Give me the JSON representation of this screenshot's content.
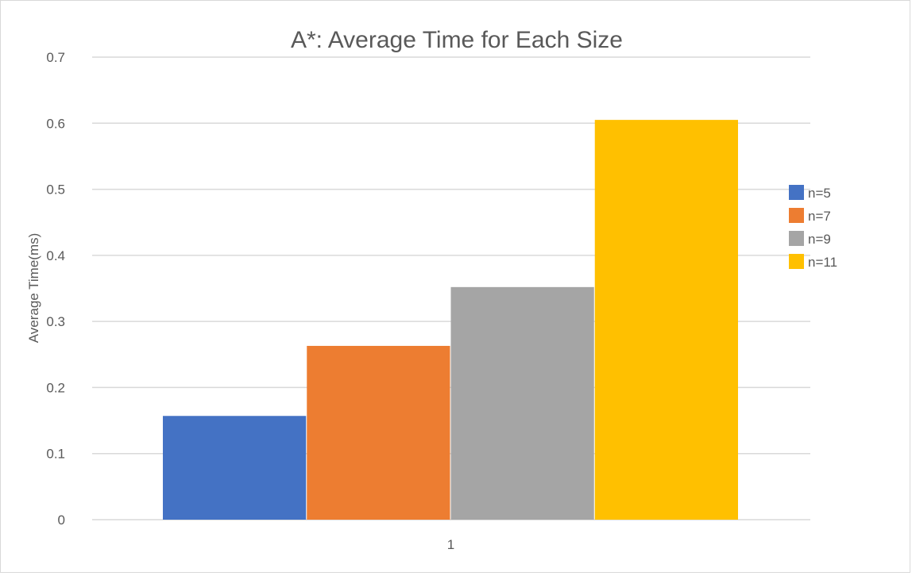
{
  "chart_data": {
    "type": "bar",
    "title": "A*: Average Time for Each Size",
    "xlabel": "",
    "ylabel": "Average Time(ms)",
    "categories": [
      "1"
    ],
    "series": [
      {
        "name": "n=5",
        "values": [
          0.157
        ],
        "color": "#4472c4"
      },
      {
        "name": "n=7",
        "values": [
          0.263
        ],
        "color": "#ed7d31"
      },
      {
        "name": "n=9",
        "values": [
          0.352
        ],
        "color": "#a5a5a5"
      },
      {
        "name": "n=11",
        "values": [
          0.605
        ],
        "color": "#ffc000"
      }
    ],
    "ylim": [
      0,
      0.7
    ],
    "yticks": [
      "0",
      "0.1",
      "0.2",
      "0.3",
      "0.4",
      "0.5",
      "0.6",
      "0.7"
    ],
    "grid": true,
    "legend": "right",
    "gridline_color": "#d9d9d9"
  }
}
